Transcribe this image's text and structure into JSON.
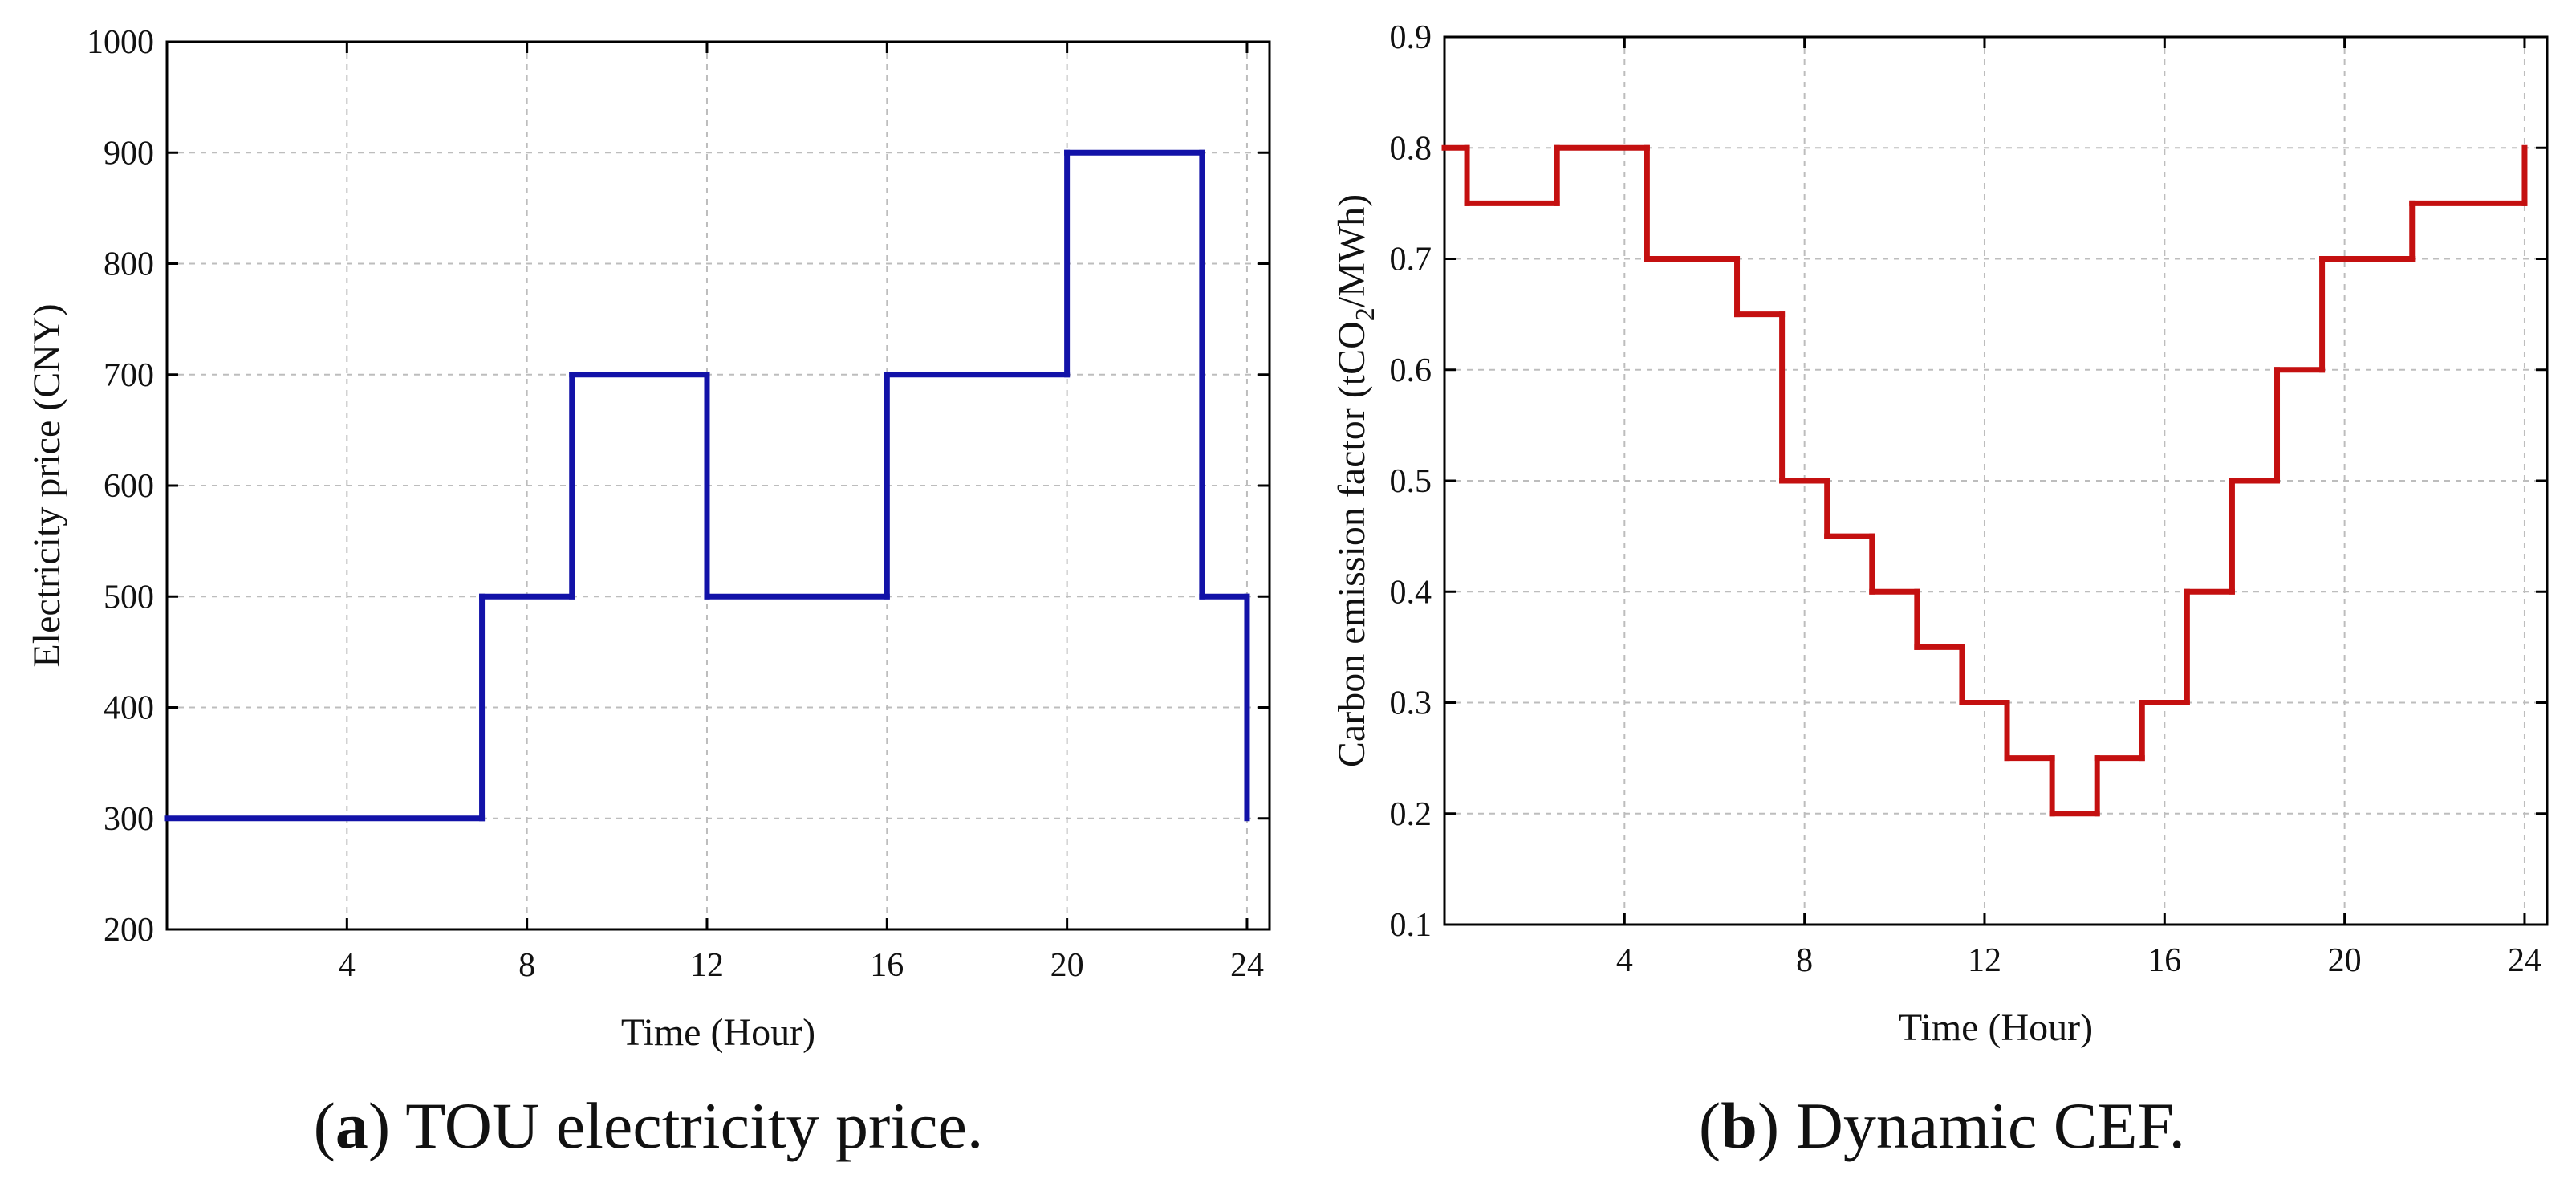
{
  "chart_data": [
    {
      "type": "line",
      "step": true,
      "panel": "a",
      "caption_letter": "a",
      "caption_text": "TOU electricity price.",
      "xlabel": "Time (Hour)",
      "ylabel": "Electricity price (CNY)",
      "xlim": [
        0,
        24.5
      ],
      "ylim": [
        200,
        1000
      ],
      "xticks": [
        4,
        8,
        12,
        16,
        20,
        24
      ],
      "yticks": [
        200,
        300,
        400,
        500,
        600,
        700,
        800,
        900,
        1000
      ],
      "grid": true,
      "color": "#1212a8",
      "x": [
        0,
        7,
        7,
        9,
        9,
        12,
        12,
        16,
        16,
        20,
        20,
        23,
        23,
        24,
        24
      ],
      "y": [
        300,
        300,
        500,
        500,
        700,
        700,
        500,
        500,
        700,
        700,
        900,
        900,
        500,
        500,
        300
      ]
    },
    {
      "type": "line",
      "step": true,
      "panel": "b",
      "caption_letter": "b",
      "caption_text": "Dynamic CEF.",
      "xlabel": "Time (Hour)",
      "ylabel_main": "Carbon emission factor (tCO",
      "ylabel_sub": "2",
      "ylabel_end": "/MWh)",
      "xlim": [
        0,
        24.5
      ],
      "ylim": [
        0.1,
        0.9
      ],
      "xticks": [
        4,
        8,
        12,
        16,
        20,
        24
      ],
      "yticks": [
        0.1,
        0.2,
        0.3,
        0.4,
        0.5,
        0.6,
        0.7,
        0.8,
        0.9
      ],
      "grid": true,
      "color": "#c41010",
      "x": [
        0,
        0.5,
        0.5,
        2.5,
        2.5,
        4.5,
        4.5,
        6.5,
        6.5,
        7.5,
        7.5,
        8.5,
        8.5,
        9.5,
        9.5,
        10.5,
        10.5,
        11.5,
        11.5,
        12.5,
        12.5,
        13.5,
        13.5,
        14.5,
        14.5,
        15.5,
        15.5,
        16.5,
        16.5,
        17.5,
        17.5,
        18.5,
        18.5,
        19.5,
        19.5,
        21.5,
        21.5,
        24,
        24
      ],
      "y": [
        0.8,
        0.8,
        0.75,
        0.75,
        0.8,
        0.8,
        0.7,
        0.7,
        0.65,
        0.65,
        0.5,
        0.5,
        0.45,
        0.45,
        0.4,
        0.4,
        0.35,
        0.35,
        0.3,
        0.3,
        0.25,
        0.25,
        0.2,
        0.2,
        0.25,
        0.25,
        0.3,
        0.3,
        0.4,
        0.4,
        0.5,
        0.5,
        0.6,
        0.6,
        0.7,
        0.7,
        0.75,
        0.75,
        0.8
      ]
    }
  ]
}
